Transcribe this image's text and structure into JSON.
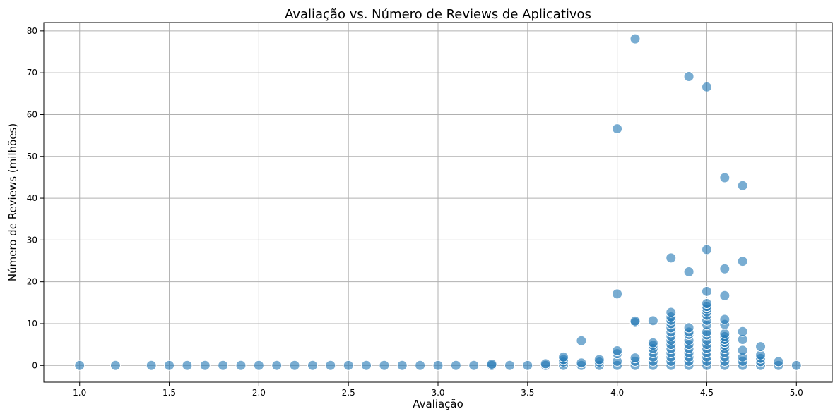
{
  "chart_data": {
    "type": "scatter",
    "title": "Avaliação vs. Número de Reviews de Aplicativos",
    "xlabel": "Avaliação",
    "ylabel": "Número de Reviews (milhões)",
    "xlim": [
      0.8,
      5.2
    ],
    "ylim": [
      -4,
      82
    ],
    "xticks": [
      "1.0",
      "1.5",
      "2.0",
      "2.5",
      "3.0",
      "3.5",
      "4.0",
      "4.5",
      "5.0"
    ],
    "yticks": [
      "0",
      "10",
      "20",
      "30",
      "40",
      "50",
      "60",
      "70",
      "80"
    ],
    "grid": true,
    "marker_color": "#1f77b4",
    "marker_alpha": 0.6,
    "points": [
      {
        "x": 1.0,
        "y": 0
      },
      {
        "x": 1.2,
        "y": 0
      },
      {
        "x": 1.4,
        "y": 0
      },
      {
        "x": 1.5,
        "y": 0
      },
      {
        "x": 1.6,
        "y": 0
      },
      {
        "x": 1.7,
        "y": 0
      },
      {
        "x": 1.8,
        "y": 0
      },
      {
        "x": 1.9,
        "y": 0
      },
      {
        "x": 2.0,
        "y": 0
      },
      {
        "x": 2.1,
        "y": 0
      },
      {
        "x": 2.2,
        "y": 0
      },
      {
        "x": 2.3,
        "y": 0
      },
      {
        "x": 2.4,
        "y": 0
      },
      {
        "x": 2.5,
        "y": 0
      },
      {
        "x": 2.6,
        "y": 0
      },
      {
        "x": 2.7,
        "y": 0
      },
      {
        "x": 2.8,
        "y": 0
      },
      {
        "x": 2.9,
        "y": 0
      },
      {
        "x": 3.0,
        "y": 0
      },
      {
        "x": 3.1,
        "y": 0
      },
      {
        "x": 3.2,
        "y": 0
      },
      {
        "x": 3.3,
        "y": 0
      },
      {
        "x": 3.3,
        "y": 0.3
      },
      {
        "x": 3.4,
        "y": 0
      },
      {
        "x": 3.5,
        "y": 0
      },
      {
        "x": 3.6,
        "y": 0
      },
      {
        "x": 3.6,
        "y": 0.4
      },
      {
        "x": 3.7,
        "y": 0
      },
      {
        "x": 3.7,
        "y": 0.8
      },
      {
        "x": 3.7,
        "y": 1.4
      },
      {
        "x": 3.7,
        "y": 2.0
      },
      {
        "x": 3.8,
        "y": 0
      },
      {
        "x": 3.8,
        "y": 0.6
      },
      {
        "x": 3.8,
        "y": 5.9
      },
      {
        "x": 3.9,
        "y": 0
      },
      {
        "x": 3.9,
        "y": 0.8
      },
      {
        "x": 3.9,
        "y": 1.4
      },
      {
        "x": 4.0,
        "y": 0
      },
      {
        "x": 4.0,
        "y": 1.0
      },
      {
        "x": 4.0,
        "y": 2.8
      },
      {
        "x": 4.0,
        "y": 3.5
      },
      {
        "x": 4.0,
        "y": 17.1
      },
      {
        "x": 4.0,
        "y": 56.6
      },
      {
        "x": 4.1,
        "y": 0
      },
      {
        "x": 4.1,
        "y": 1.0
      },
      {
        "x": 4.1,
        "y": 1.8
      },
      {
        "x": 4.1,
        "y": 10.3
      },
      {
        "x": 4.1,
        "y": 10.6
      },
      {
        "x": 4.1,
        "y": 78.1
      },
      {
        "x": 4.2,
        "y": 0
      },
      {
        "x": 4.2,
        "y": 1.0
      },
      {
        "x": 4.2,
        "y": 2.0
      },
      {
        "x": 4.2,
        "y": 3.0
      },
      {
        "x": 4.2,
        "y": 4.0
      },
      {
        "x": 4.2,
        "y": 4.8
      },
      {
        "x": 4.2,
        "y": 5.4
      },
      {
        "x": 4.2,
        "y": 10.7
      },
      {
        "x": 4.3,
        "y": 0
      },
      {
        "x": 4.3,
        "y": 1.0
      },
      {
        "x": 4.3,
        "y": 2.0
      },
      {
        "x": 4.3,
        "y": 3.0
      },
      {
        "x": 4.3,
        "y": 4.0
      },
      {
        "x": 4.3,
        "y": 5.0
      },
      {
        "x": 4.3,
        "y": 6.0
      },
      {
        "x": 4.3,
        "y": 7.0
      },
      {
        "x": 4.3,
        "y": 8.0
      },
      {
        "x": 4.3,
        "y": 9.0
      },
      {
        "x": 4.3,
        "y": 10.0
      },
      {
        "x": 4.3,
        "y": 10.8
      },
      {
        "x": 4.3,
        "y": 11.6
      },
      {
        "x": 4.3,
        "y": 12.7
      },
      {
        "x": 4.3,
        "y": 25.7
      },
      {
        "x": 4.4,
        "y": 0
      },
      {
        "x": 4.4,
        "y": 1.0
      },
      {
        "x": 4.4,
        "y": 2.0
      },
      {
        "x": 4.4,
        "y": 3.0
      },
      {
        "x": 4.4,
        "y": 4.0
      },
      {
        "x": 4.4,
        "y": 5.0
      },
      {
        "x": 4.4,
        "y": 6.0
      },
      {
        "x": 4.4,
        "y": 7.4
      },
      {
        "x": 4.4,
        "y": 8.0
      },
      {
        "x": 4.4,
        "y": 9.0
      },
      {
        "x": 4.4,
        "y": 22.4
      },
      {
        "x": 4.4,
        "y": 69.1
      },
      {
        "x": 4.5,
        "y": 0
      },
      {
        "x": 4.5,
        "y": 1.0
      },
      {
        "x": 4.5,
        "y": 2.0
      },
      {
        "x": 4.5,
        "y": 3.0
      },
      {
        "x": 4.5,
        "y": 4.0
      },
      {
        "x": 4.5,
        "y": 5.0
      },
      {
        "x": 4.5,
        "y": 6.0
      },
      {
        "x": 4.5,
        "y": 7.3
      },
      {
        "x": 4.5,
        "y": 8.0
      },
      {
        "x": 4.5,
        "y": 9.7
      },
      {
        "x": 4.5,
        "y": 10.8
      },
      {
        "x": 4.5,
        "y": 12.0
      },
      {
        "x": 4.5,
        "y": 12.8
      },
      {
        "x": 4.5,
        "y": 13.5
      },
      {
        "x": 4.5,
        "y": 14.1
      },
      {
        "x": 4.5,
        "y": 14.8
      },
      {
        "x": 4.5,
        "y": 17.7
      },
      {
        "x": 4.5,
        "y": 27.7
      },
      {
        "x": 4.5,
        "y": 66.6
      },
      {
        "x": 4.6,
        "y": 0
      },
      {
        "x": 4.6,
        "y": 1.0
      },
      {
        "x": 4.6,
        "y": 2.0
      },
      {
        "x": 4.6,
        "y": 3.0
      },
      {
        "x": 4.6,
        "y": 4.0
      },
      {
        "x": 4.6,
        "y": 4.8
      },
      {
        "x": 4.6,
        "y": 5.5
      },
      {
        "x": 4.6,
        "y": 6.2
      },
      {
        "x": 4.6,
        "y": 6.9
      },
      {
        "x": 4.6,
        "y": 7.6
      },
      {
        "x": 4.6,
        "y": 9.8
      },
      {
        "x": 4.6,
        "y": 11.0
      },
      {
        "x": 4.6,
        "y": 16.7
      },
      {
        "x": 4.6,
        "y": 23.1
      },
      {
        "x": 4.6,
        "y": 44.9
      },
      {
        "x": 4.7,
        "y": 0
      },
      {
        "x": 4.7,
        "y": 1.0
      },
      {
        "x": 4.7,
        "y": 2.0
      },
      {
        "x": 4.7,
        "y": 3.6
      },
      {
        "x": 4.7,
        "y": 6.2
      },
      {
        "x": 4.7,
        "y": 8.1
      },
      {
        "x": 4.7,
        "y": 24.9
      },
      {
        "x": 4.7,
        "y": 43.0
      },
      {
        "x": 4.8,
        "y": 0
      },
      {
        "x": 4.8,
        "y": 0.9
      },
      {
        "x": 4.8,
        "y": 1.7
      },
      {
        "x": 4.8,
        "y": 2.5
      },
      {
        "x": 4.8,
        "y": 4.5
      },
      {
        "x": 4.9,
        "y": 0
      },
      {
        "x": 4.9,
        "y": 0.9
      },
      {
        "x": 5.0,
        "y": 0
      }
    ]
  }
}
